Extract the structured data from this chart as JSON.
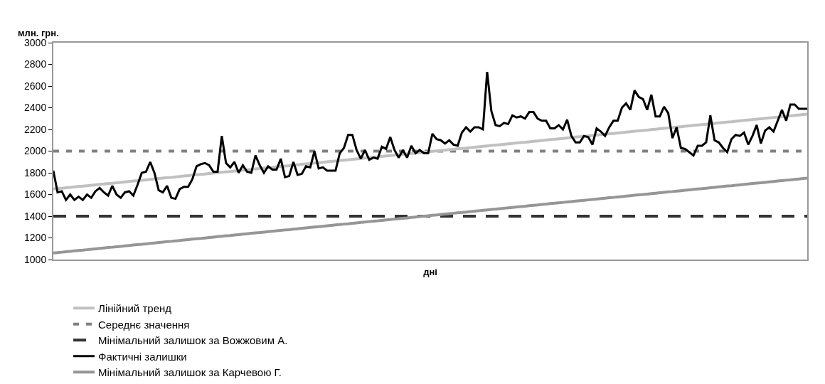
{
  "chart_data": {
    "type": "line",
    "ylabel": "млн. грн.",
    "xlabel": "дні",
    "categories": [
      null,
      null,
      null,
      null,
      null,
      null,
      null,
      null,
      null,
      null,
      null,
      null,
      null,
      null,
      null,
      null,
      null,
      null,
      null,
      null,
      null,
      null,
      null,
      null,
      null,
      null,
      null,
      null,
      null,
      null,
      null,
      null,
      null,
      null,
      null,
      null,
      null,
      null,
      null,
      null,
      null,
      null,
      null,
      null,
      null,
      null,
      null,
      null,
      null,
      null,
      null,
      null,
      null,
      null,
      null,
      null,
      null,
      null,
      null,
      null,
      null,
      null,
      null,
      null,
      null,
      null,
      null,
      null,
      null,
      null,
      null,
      null,
      null,
      null,
      null,
      null,
      null,
      null,
      null,
      null,
      null,
      null,
      null,
      null,
      null,
      null,
      null,
      null,
      null,
      null,
      null,
      null,
      null,
      null,
      null,
      null,
      null,
      null,
      null,
      null,
      null,
      null,
      null,
      null,
      null,
      null,
      null,
      null,
      null,
      null,
      null,
      null,
      null,
      null,
      null,
      null,
      null,
      null,
      null,
      null,
      null,
      null,
      null,
      null,
      null,
      null,
      null,
      null,
      null,
      null,
      null,
      null,
      null,
      null,
      null,
      null,
      null,
      null,
      null,
      null,
      null,
      null,
      null,
      null,
      null,
      null,
      null,
      null,
      null,
      null,
      null,
      null,
      null,
      null,
      null,
      null,
      null,
      null,
      null,
      null,
      null,
      null,
      null,
      null,
      null,
      null,
      null,
      null,
      null,
      null,
      null,
      null,
      null,
      null,
      null,
      null,
      null,
      null,
      null,
      null
    ],
    "ylim": [
      1000,
      3000
    ],
    "yticks": [
      1000,
      1200,
      1400,
      1600,
      1800,
      2000,
      2200,
      2400,
      2600,
      2800,
      3000
    ],
    "tick_labels": "y",
    "legend": "bottom",
    "marker": "none",
    "series": [
      {
        "name": "Лінійний тренд",
        "color": "#c0c0c0",
        "values": [
          1650,
          1654,
          1658,
          1662,
          1666,
          1670,
          1674,
          1677,
          1681,
          1685,
          1689,
          1693,
          1697,
          1701,
          1704,
          1708,
          1712,
          1716,
          1720,
          1724,
          1728,
          1731,
          1735,
          1739,
          1743,
          1747,
          1751,
          1755,
          1758,
          1762,
          1766,
          1770,
          1774,
          1778,
          1782,
          1785,
          1789,
          1793,
          1797,
          1801,
          1805,
          1809,
          1812,
          1816,
          1820,
          1824,
          1828,
          1832,
          1836,
          1839,
          1843,
          1847,
          1851,
          1855,
          1859,
          1863,
          1866,
          1870,
          1874,
          1878,
          1882,
          1886,
          1890,
          1893,
          1897,
          1901,
          1905,
          1909,
          1913,
          1917,
          1920,
          1924,
          1928,
          1932,
          1936,
          1940,
          1944,
          1947,
          1951,
          1955,
          1959,
          1963,
          1967,
          1971,
          1974,
          1978,
          1982,
          1986,
          1990,
          1994,
          1998,
          2001,
          2005,
          2009,
          2013,
          2017,
          2021,
          2025,
          2028,
          2032,
          2036,
          2040,
          2044,
          2048,
          2052,
          2055,
          2059,
          2063,
          2067,
          2071,
          2075,
          2079,
          2082,
          2086,
          2090,
          2094,
          2098,
          2102,
          2106,
          2109,
          2113,
          2117,
          2121,
          2125,
          2129,
          2133,
          2136,
          2140,
          2144,
          2148,
          2152,
          2156,
          2160,
          2163,
          2167,
          2171,
          2175,
          2179,
          2183,
          2187,
          2190,
          2194,
          2198,
          2202,
          2206,
          2210,
          2214,
          2217,
          2221,
          2225,
          2229,
          2233,
          2237,
          2241,
          2244,
          2248,
          2252,
          2256,
          2260,
          2264,
          2268,
          2271,
          2275,
          2279,
          2283,
          2287,
          2291,
          2295,
          2298,
          2302,
          2306,
          2310,
          2314,
          2318,
          2322,
          2325,
          2329,
          2333,
          2337,
          2341
        ]
      },
      {
        "name": "Фактичні залишки",
        "color": "#000000",
        "values": [
          1820,
          1620,
          1630,
          1550,
          1600,
          1550,
          1580,
          1550,
          1600,
          1570,
          1630,
          1660,
          1620,
          1590,
          1680,
          1600,
          1570,
          1620,
          1630,
          1590,
          1690,
          1800,
          1810,
          1900,
          1800,
          1640,
          1620,
          1680,
          1570,
          1560,
          1650,
          1670,
          1670,
          1740,
          1860,
          1880,
          1890,
          1870,
          1810,
          1810,
          2140,
          1890,
          1850,
          1900,
          1800,
          1870,
          1810,
          1800,
          1960,
          1870,
          1800,
          1860,
          1830,
          1830,
          1930,
          1760,
          1770,
          1900,
          1780,
          1790,
          1860,
          1850,
          2000,
          1840,
          1850,
          1820,
          1820,
          1820,
          1980,
          2030,
          2150,
          2150,
          2010,
          1930,
          2010,
          1920,
          1940,
          1930,
          2040,
          2020,
          2130,
          2010,
          1940,
          2010,
          1940,
          2050,
          1980,
          2010,
          1980,
          1980,
          2160,
          2110,
          2100,
          2070,
          2100,
          2060,
          2050,
          2170,
          2220,
          2180,
          2220,
          2220,
          2200,
          2730,
          2370,
          2240,
          2230,
          2260,
          2250,
          2330,
          2310,
          2320,
          2300,
          2360,
          2360,
          2300,
          2280,
          2280,
          2210,
          2210,
          2240,
          2200,
          2290,
          2140,
          2080,
          2080,
          2140,
          2130,
          2060,
          2210,
          2180,
          2140,
          2220,
          2280,
          2280,
          2400,
          2440,
          2380,
          2560,
          2500,
          2480,
          2380,
          2520,
          2320,
          2320,
          2410,
          2350,
          2120,
          2220,
          2030,
          2020,
          1990,
          1960,
          2050,
          2050,
          2080,
          2330,
          2100,
          2080,
          2030,
          1990,
          2110,
          2150,
          2140,
          2170,
          2060,
          2140,
          2240,
          2070,
          2190,
          2220,
          2180,
          2280,
          2380,
          2280,
          2430,
          2430,
          2390,
          2390,
          2390
        ]
      },
      {
        "name": "Мінімальний залишок за Карчевою Г.",
        "color": "#969696",
        "values": [
          1060,
          1064,
          1068,
          1072,
          1076,
          1080,
          1084,
          1087,
          1091,
          1095,
          1099,
          1103,
          1107,
          1111,
          1114,
          1118,
          1122,
          1126,
          1130,
          1134,
          1138,
          1141,
          1145,
          1149,
          1153,
          1157,
          1161,
          1165,
          1168,
          1172,
          1176,
          1180,
          1184,
          1188,
          1192,
          1195,
          1199,
          1203,
          1207,
          1211,
          1215,
          1219,
          1222,
          1226,
          1230,
          1234,
          1238,
          1242,
          1246,
          1249,
          1253,
          1257,
          1261,
          1265,
          1269,
          1273,
          1276,
          1280,
          1284,
          1288,
          1292,
          1296,
          1300,
          1303,
          1307,
          1311,
          1315,
          1319,
          1323,
          1327,
          1330,
          1334,
          1338,
          1342,
          1346,
          1350,
          1354,
          1357,
          1361,
          1365,
          1369,
          1373,
          1377,
          1381,
          1384,
          1388,
          1392,
          1396,
          1400,
          1404,
          1408,
          1411,
          1415,
          1419,
          1423,
          1427,
          1431,
          1435,
          1438,
          1442,
          1446,
          1450,
          1454,
          1458,
          1462,
          1465,
          1469,
          1473,
          1477,
          1481,
          1485,
          1489,
          1492,
          1496,
          1500,
          1504,
          1508,
          1512,
          1516,
          1519,
          1523,
          1527,
          1531,
          1535,
          1539,
          1543,
          1546,
          1550,
          1554,
          1558,
          1562,
          1566,
          1570,
          1573,
          1577,
          1581,
          1585,
          1589,
          1593,
          1597,
          1600,
          1604,
          1608,
          1612,
          1616,
          1620,
          1624,
          1627,
          1631,
          1635,
          1639,
          1643,
          1647,
          1651,
          1654,
          1658,
          1662,
          1666,
          1670,
          1674,
          1678,
          1681,
          1685,
          1689,
          1693,
          1697,
          1701,
          1705,
          1708,
          1712,
          1716,
          1720,
          1724,
          1728,
          1732,
          1735,
          1739,
          1743,
          1747,
          1751
        ]
      }
    ],
    "ref_lines": [
      {
        "axis": "y",
        "value": 2000,
        "label": "Середнє значення",
        "color": "#808080",
        "line_style": "dotted"
      },
      {
        "axis": "y",
        "value": 1400,
        "label": "Мінімальний залишок за Вожжовим А.",
        "color": "#333333",
        "line_style": "dashed"
      }
    ]
  }
}
